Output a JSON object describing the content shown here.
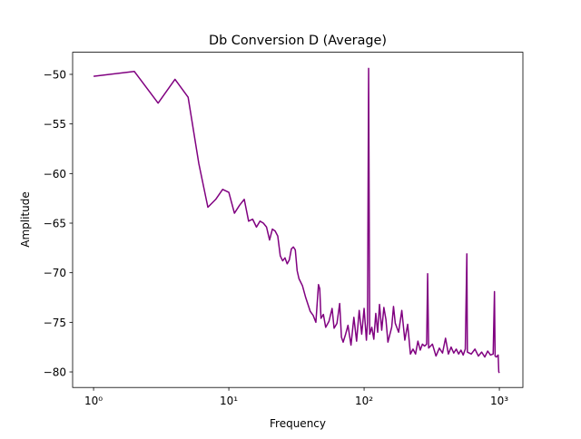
{
  "chart_data": {
    "type": "line",
    "title": "Db Conversion D (Average)",
    "xlabel": "Frequency",
    "ylabel": "Amplitude",
    "xscale": "log",
    "xlim": [
      0.7,
      1493
    ],
    "ylim": [
      -81.57,
      -47.77
    ],
    "xticks": [
      {
        "value": 1,
        "label": "10⁰"
      },
      {
        "value": 10,
        "label": "10¹"
      },
      {
        "value": 100,
        "label": "10²"
      },
      {
        "value": 1000,
        "label": "10³"
      }
    ],
    "yticks": [
      {
        "value": -80,
        "label": "−80"
      },
      {
        "value": -75,
        "label": "−75"
      },
      {
        "value": -70,
        "label": "−70"
      },
      {
        "value": -65,
        "label": "−65"
      },
      {
        "value": -60,
        "label": "−60"
      },
      {
        "value": -55,
        "label": "−55"
      },
      {
        "value": -50,
        "label": "−50"
      }
    ],
    "grid": false,
    "x": [
      1,
      2,
      3,
      4,
      5,
      6,
      7,
      8,
      9,
      10,
      11,
      12,
      13,
      14,
      15,
      16,
      17,
      18,
      19,
      20,
      21,
      22,
      23,
      24,
      25,
      26,
      27,
      28,
      29,
      30,
      31,
      32,
      33,
      35,
      37,
      40,
      42,
      44,
      46,
      47,
      48,
      50,
      52,
      55,
      58,
      60,
      63,
      66,
      68,
      70,
      73,
      76,
      80,
      84,
      88,
      92,
      96,
      100,
      104,
      106,
      108,
      109,
      110,
      114,
      118,
      122,
      126,
      130,
      135,
      140,
      145,
      150,
      160,
      165,
      170,
      180,
      190,
      200,
      210,
      220,
      230,
      240,
      250,
      260,
      270,
      280,
      290,
      295,
      300,
      320,
      340,
      360,
      380,
      400,
      420,
      440,
      460,
      480,
      500,
      520,
      540,
      560,
      575,
      580,
      620,
      660,
      700,
      740,
      780,
      820,
      860,
      900,
      920,
      930,
      950,
      980,
      990,
      1000
    ],
    "series": [
      {
        "name": "Average",
        "color": "#800080",
        "values": [
          -50.2,
          -49.7,
          -52.9,
          -50.5,
          -52.3,
          -59,
          -63.4,
          -62.6,
          -61.6,
          -61.9,
          -64,
          -63.2,
          -62.6,
          -64.8,
          -64.6,
          -65.4,
          -64.8,
          -65,
          -65.4,
          -66.7,
          -65.6,
          -65.8,
          -66.3,
          -68.3,
          -68.8,
          -68.5,
          -69.1,
          -68.7,
          -67.6,
          -67.4,
          -67.7,
          -69.8,
          -70.6,
          -71.3,
          -72.5,
          -73.9,
          -74.3,
          -75,
          -71.2,
          -71.6,
          -74.6,
          -74.2,
          -75.5,
          -74.9,
          -73.6,
          -75.6,
          -75.1,
          -73.1,
          -76.5,
          -77,
          -76.2,
          -75.3,
          -77.3,
          -74.5,
          -76.9,
          -73.8,
          -76.2,
          -73.6,
          -76.8,
          -75,
          -49.4,
          -63,
          -76.2,
          -75.5,
          -76.7,
          -74.1,
          -76,
          -73.2,
          -75.8,
          -73.5,
          -74.7,
          -77,
          -75.5,
          -73.4,
          -75.1,
          -76,
          -73.8,
          -76.8,
          -75.2,
          -78.2,
          -77.7,
          -78.2,
          -76.9,
          -77.8,
          -77.2,
          -77.4,
          -77.2,
          -70.1,
          -77.6,
          -77.2,
          -78.4,
          -77.6,
          -78.1,
          -76.6,
          -78.2,
          -77.5,
          -78.1,
          -77.7,
          -78.2,
          -77.8,
          -78.3,
          -77.7,
          -68.1,
          -78,
          -78.2,
          -77.7,
          -78.4,
          -78,
          -78.5,
          -77.9,
          -78.3,
          -78.2,
          -71.9,
          -78.4,
          -78.5,
          -78.3,
          -80,
          -80.1
        ]
      }
    ]
  }
}
